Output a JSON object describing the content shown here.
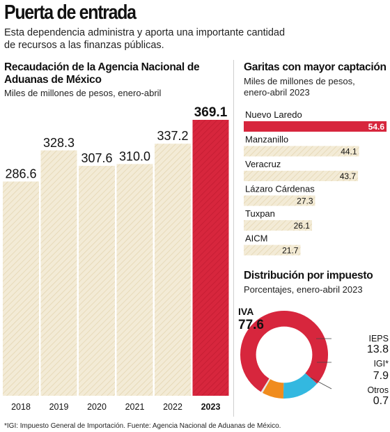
{
  "headline": "Puerta de entrada",
  "dek": "Esta dependencia administra y aporta una importante cantidad de recursos a las finanzas públicas.",
  "footnote": "*IGI: Impuesto General de Importación. Fuente: Agencia Nacional de Aduanas de México.",
  "colors": {
    "highlight": "#d7263d",
    "bar_fill": "#f3ebd6",
    "hatch": "#e2d3ad",
    "ieps": "#33b8e0",
    "igi": "#f08c1e",
    "otros": "#e6e6e6"
  },
  "chart_data": [
    {
      "type": "bar",
      "title": "Recaudación de la Agencia Nacional de Aduanas de México",
      "subtitle": "Miles de millones de pesos, enero-abril",
      "categories": [
        "2018",
        "2019",
        "2020",
        "2021",
        "2022",
        "2023"
      ],
      "values": [
        286.6,
        328.3,
        307.6,
        310.0,
        337.2,
        369.1
      ],
      "value_labels": [
        "286.6",
        "328.3",
        "307.6",
        "310.0",
        "337.2",
        "369.1"
      ],
      "highlight_index": 5,
      "ylim": [
        0,
        369.1
      ]
    },
    {
      "type": "bar",
      "orientation": "horizontal",
      "title": "Garitas con mayor captación",
      "subtitle": "Miles de millones de pesos, enero-abril 2023",
      "categories": [
        "Nuevo Laredo",
        "Manzanillo",
        "Veracruz",
        "Lázaro Cárdenas",
        "Tuxpan",
        "AICM"
      ],
      "values": [
        54.6,
        44.1,
        43.7,
        27.3,
        26.1,
        21.7
      ],
      "highlight_index": 0,
      "xlim": [
        0,
        54.6
      ]
    },
    {
      "type": "pie",
      "title": "Distribución por impuesto",
      "subtitle": "Porcentajes, enero-abril 2023",
      "labels": [
        "IVA",
        "IEPS",
        "IGI*",
        "Otros"
      ],
      "values": [
        77.6,
        13.8,
        7.9,
        0.7
      ],
      "value_labels": [
        "77.6",
        "13.8",
        "7.9",
        "0.7"
      ]
    }
  ]
}
